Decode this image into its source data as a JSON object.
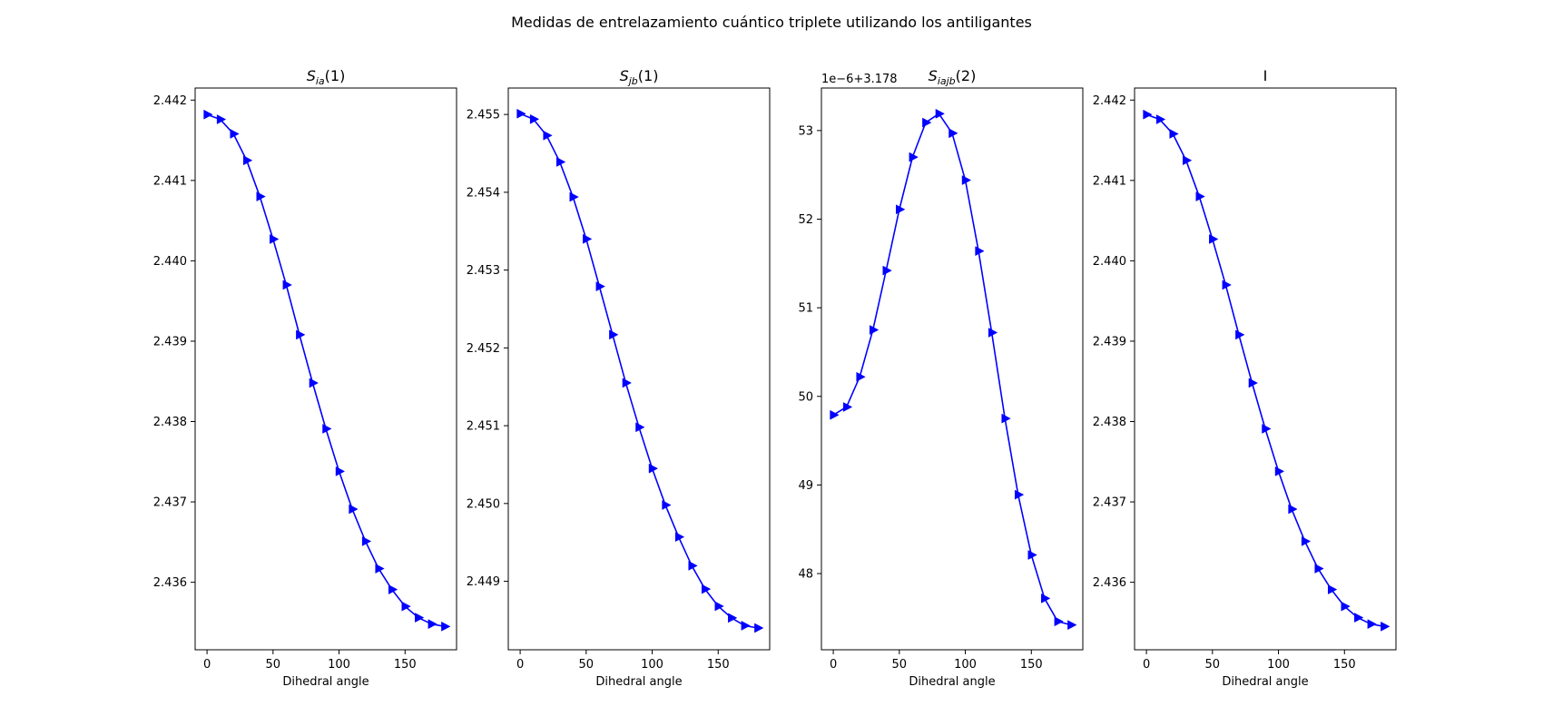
{
  "figure": {
    "suptitle": "Medidas de entrelazamiento cuántico triplete utilizando los antiligantes",
    "line_color": "#0000ff",
    "marker": "triangle-right"
  },
  "chart_data": [
    {
      "type": "line",
      "title": "S",
      "title_sub": "ia",
      "title_suffix": "(1)",
      "xlabel": "Dihedral angle",
      "ylabel": "",
      "offset_label": "",
      "xlim": [
        -9,
        189
      ],
      "ylim": [
        2.43516,
        2.44215
      ],
      "xticks": [
        0,
        50,
        100,
        150
      ],
      "yticks": [
        2.436,
        2.437,
        2.438,
        2.439,
        2.44,
        2.441,
        2.442
      ],
      "ytick_labels": [
        "2.436",
        "2.437",
        "2.438",
        "2.439",
        "2.440",
        "2.441",
        "2.442"
      ],
      "x": [
        0,
        10,
        20,
        30,
        40,
        50,
        60,
        70,
        80,
        90,
        100,
        110,
        120,
        130,
        140,
        150,
        160,
        170,
        180
      ],
      "y": [
        2.44182,
        2.44176,
        2.44158,
        2.44125,
        2.4408,
        2.44027,
        2.4397,
        2.43908,
        2.43848,
        2.43791,
        2.43738,
        2.43691,
        2.43651,
        2.43617,
        2.43591,
        2.4357,
        2.43556,
        2.43548,
        2.43545
      ]
    },
    {
      "type": "line",
      "title": "S",
      "title_sub": "jb",
      "title_suffix": "(1)",
      "xlabel": "Dihedral angle",
      "ylabel": "",
      "offset_label": "",
      "xlim": [
        -9,
        189
      ],
      "ylim": [
        2.44812,
        2.45534
      ],
      "xticks": [
        0,
        50,
        100,
        150
      ],
      "yticks": [
        2.449,
        2.45,
        2.451,
        2.452,
        2.453,
        2.454,
        2.455
      ],
      "ytick_labels": [
        "2.449",
        "2.450",
        "2.451",
        "2.452",
        "2.453",
        "2.454",
        "2.455"
      ],
      "x": [
        0,
        10,
        20,
        30,
        40,
        50,
        60,
        70,
        80,
        90,
        100,
        110,
        120,
        130,
        140,
        150,
        160,
        170,
        180
      ],
      "y": [
        2.45501,
        2.45494,
        2.45473,
        2.45439,
        2.45394,
        2.4534,
        2.45279,
        2.45217,
        2.45155,
        2.45098,
        2.45045,
        2.44998,
        2.44957,
        2.4492,
        2.4489,
        2.44868,
        2.44853,
        2.44843,
        2.4484
      ]
    },
    {
      "type": "line",
      "title": "S",
      "title_sub": "iajb",
      "title_suffix": "(2)",
      "xlabel": "Dihedral angle",
      "ylabel": "",
      "offset_label": "1e−6+3.178",
      "xlim": [
        -9,
        189
      ],
      "ylim": [
        47.14,
        53.48
      ],
      "xticks": [
        0,
        50,
        100,
        150
      ],
      "yticks": [
        48,
        49,
        50,
        51,
        52,
        53
      ],
      "ytick_labels": [
        "48",
        "49",
        "50",
        "51",
        "52",
        "53"
      ],
      "x": [
        0,
        10,
        20,
        30,
        40,
        50,
        60,
        70,
        80,
        90,
        100,
        110,
        120,
        130,
        140,
        150,
        160,
        170,
        180
      ],
      "y": [
        49.79,
        49.88,
        50.22,
        50.75,
        51.42,
        52.11,
        52.7,
        53.09,
        53.19,
        52.97,
        52.44,
        51.64,
        50.72,
        49.75,
        48.89,
        48.21,
        47.72,
        47.46,
        47.42
      ]
    },
    {
      "type": "line",
      "title": "I",
      "title_sub": "",
      "title_suffix": "",
      "xlabel": "Dihedral angle",
      "ylabel": "",
      "offset_label": "",
      "xlim": [
        -9,
        189
      ],
      "ylim": [
        2.43516,
        2.44215
      ],
      "xticks": [
        0,
        50,
        100,
        150
      ],
      "yticks": [
        2.436,
        2.437,
        2.438,
        2.439,
        2.44,
        2.441,
        2.442
      ],
      "ytick_labels": [
        "2.436",
        "2.437",
        "2.438",
        "2.439",
        "2.440",
        "2.441",
        "2.442"
      ],
      "x": [
        0,
        10,
        20,
        30,
        40,
        50,
        60,
        70,
        80,
        90,
        100,
        110,
        120,
        130,
        140,
        150,
        160,
        170,
        180
      ],
      "y": [
        2.44182,
        2.44176,
        2.44158,
        2.44125,
        2.4408,
        2.44027,
        2.4397,
        2.43908,
        2.43848,
        2.43791,
        2.43738,
        2.43691,
        2.43651,
        2.43617,
        2.43591,
        2.4357,
        2.43556,
        2.43548,
        2.43545
      ]
    }
  ]
}
